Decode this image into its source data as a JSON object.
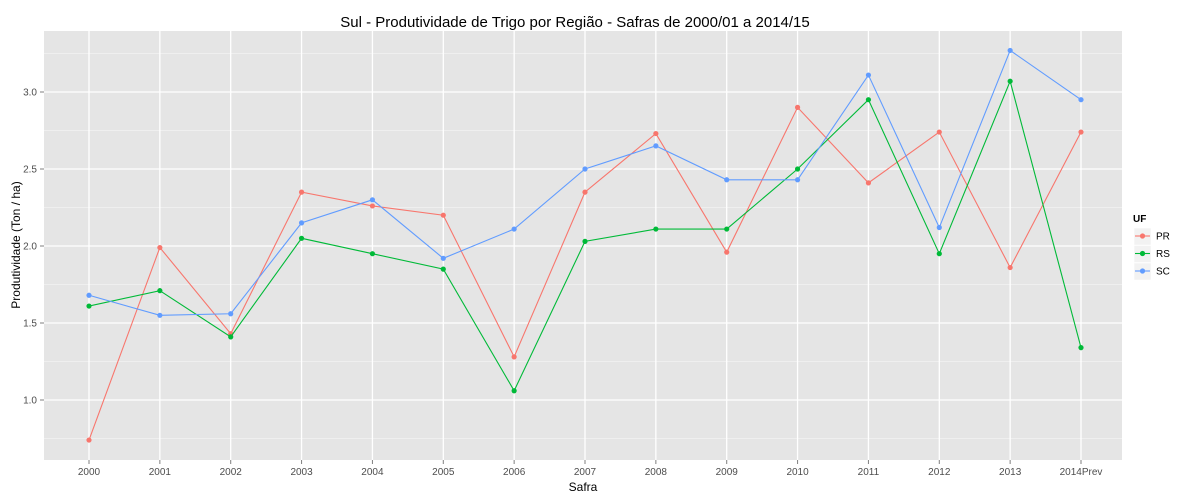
{
  "chart_data": {
    "type": "line",
    "title": "Sul  - Produtividade de Trigo por Região - Safras de 2000/01 a 2014/15",
    "xlabel": "Safra",
    "ylabel": "Produtividade (Ton / ha)",
    "categories": [
      "2000",
      "2001",
      "2002",
      "2003",
      "2004",
      "2005",
      "2006",
      "2007",
      "2008",
      "2009",
      "2010",
      "2011",
      "2012",
      "2013",
      "2014Prev"
    ],
    "ylim": [
      0.73,
      3.36
    ],
    "yticks": [
      1.0,
      1.5,
      2.0,
      2.5,
      3.0
    ],
    "ytick_labels": [
      "1.0",
      "1.5",
      "2.0",
      "2.5",
      "3.0"
    ],
    "grid": true,
    "legend": {
      "title": "UF",
      "position": "right"
    },
    "series": [
      {
        "name": "PR",
        "color": "#F8766D",
        "values": [
          0.74,
          1.99,
          1.43,
          2.35,
          2.26,
          2.2,
          1.28,
          2.35,
          2.73,
          1.96,
          2.9,
          2.41,
          2.74,
          1.86,
          2.74
        ]
      },
      {
        "name": "RS",
        "color": "#00BA38",
        "values": [
          1.61,
          1.71,
          1.41,
          2.05,
          1.95,
          1.85,
          1.06,
          2.03,
          2.11,
          2.11,
          2.5,
          2.95,
          1.95,
          3.07,
          1.34
        ]
      },
      {
        "name": "SC",
        "color": "#619CFF",
        "values": [
          1.68,
          1.55,
          1.56,
          2.15,
          2.3,
          1.92,
          2.11,
          2.5,
          2.65,
          2.43,
          2.43,
          3.11,
          2.12,
          3.27,
          2.95
        ]
      }
    ]
  }
}
